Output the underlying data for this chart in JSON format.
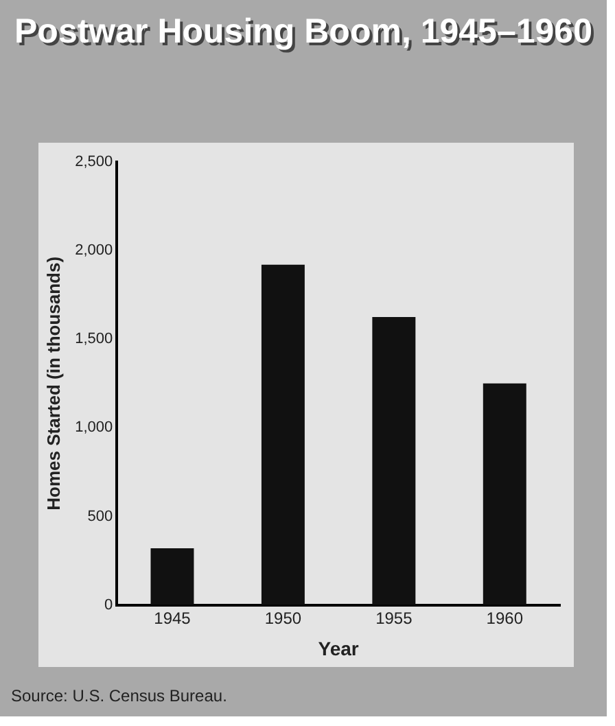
{
  "chart_data": {
    "type": "bar",
    "title": "Postwar Housing Boom, 1945–1960",
    "xlabel": "Year",
    "ylabel": "Homes Started (in thousands)",
    "categories": [
      "1945",
      "1950",
      "1955",
      "1960"
    ],
    "values": [
      320,
      1920,
      1625,
      1250
    ],
    "color": "#111111",
    "ylim": [
      0,
      2500
    ],
    "yticks": [
      0,
      {
        "value": 500,
        "label": "500"
      },
      {
        "value": 1000,
        "label": "1,000"
      },
      {
        "value": 1500,
        "label": "1,500"
      },
      {
        "value": 2000,
        "label": "2,000"
      },
      {
        "value": 2500,
        "label": "2,500"
      }
    ],
    "grid": false,
    "legend": false,
    "annotations": [
      "Source: U.S. Census Bureau."
    ]
  }
}
